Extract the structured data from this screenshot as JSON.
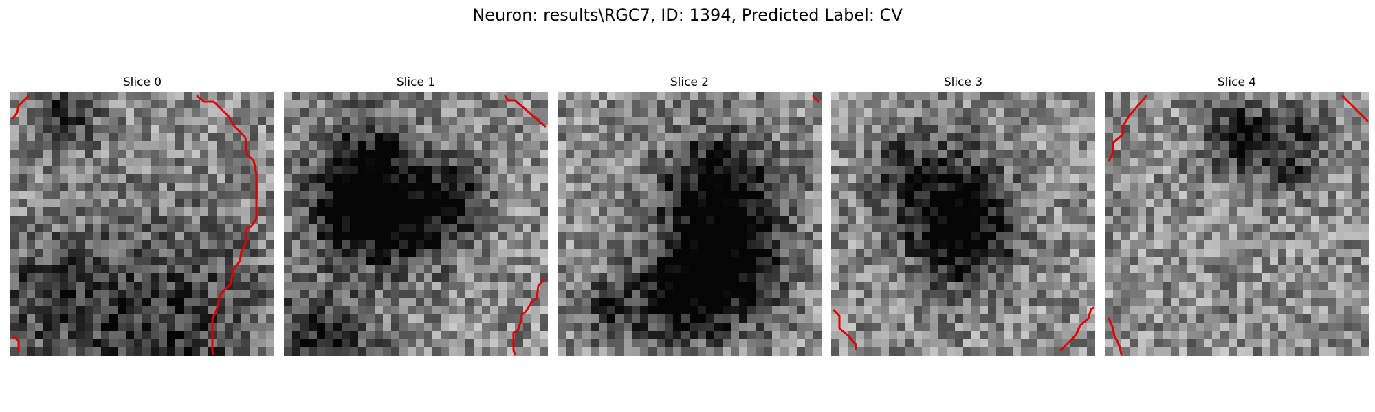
{
  "figure": {
    "title": "Neuron: results\\RGC7, ID: 1394, Predicted Label: CV",
    "contour_color": "#e00000",
    "colormap": "gray"
  },
  "slices": [
    {
      "title": "Slice 0"
    },
    {
      "title": "Slice 1"
    },
    {
      "title": "Slice 2"
    },
    {
      "title": "Slice 3"
    },
    {
      "title": "Slice 4"
    }
  ]
}
